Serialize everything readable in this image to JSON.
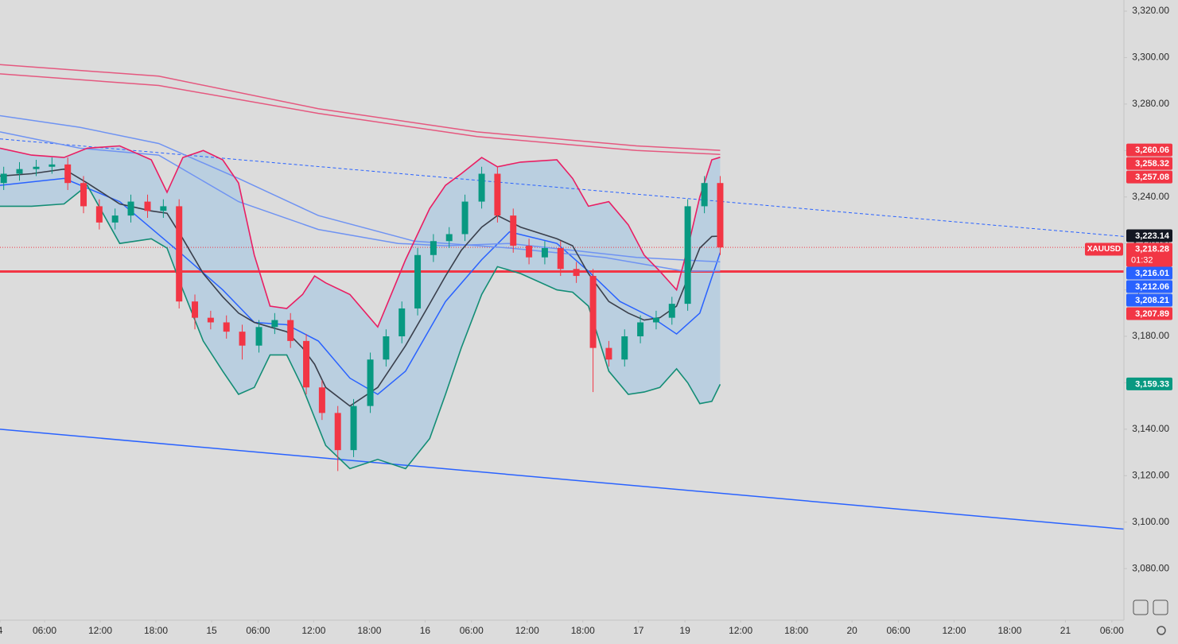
{
  "chart_data": {
    "type": "candlestick",
    "symbol": "XAUUSD",
    "countdown": "01:32",
    "last_price": {
      "value": 3218.28,
      "label": "3,218.28"
    },
    "last_color": "#f23645",
    "up_color": "#089981",
    "down_color": "#f23645",
    "xlim": [
      -22.8,
      98.3
    ],
    "ylim": [
      3057.8,
      3324.8
    ],
    "grid": false,
    "xticks": [
      {
        "value": -22.8,
        "label": "4"
      },
      {
        "value": -18,
        "label": "06:00"
      },
      {
        "value": -12,
        "label": "12:00"
      },
      {
        "value": -6,
        "label": "18:00"
      },
      {
        "value": 0,
        "label": "15"
      },
      {
        "value": 5,
        "label": "06:00"
      },
      {
        "value": 11,
        "label": "12:00"
      },
      {
        "value": 17,
        "label": "18:00"
      },
      {
        "value": 23,
        "label": "16"
      },
      {
        "value": 28,
        "label": "06:00"
      },
      {
        "value": 34,
        "label": "12:00"
      },
      {
        "value": 40,
        "label": "18:00"
      },
      {
        "value": 46,
        "label": "17"
      },
      {
        "value": 51,
        "label": "19"
      },
      {
        "value": 57,
        "label": "12:00"
      },
      {
        "value": 63,
        "label": "18:00"
      },
      {
        "value": 69,
        "label": "20"
      },
      {
        "value": 74,
        "label": "06:00"
      },
      {
        "value": 80,
        "label": "12:00"
      },
      {
        "value": 86,
        "label": "18:00"
      },
      {
        "value": 92,
        "label": "21"
      },
      {
        "value": 97,
        "label": "06:00"
      }
    ],
    "yticks": [
      {
        "value": 3320,
        "label": "3,320.00"
      },
      {
        "value": 3300,
        "label": "3,300.00"
      },
      {
        "value": 3280,
        "label": "3,280.00"
      },
      {
        "value": 3260,
        "label": "3,260.00"
      },
      {
        "value": 3240,
        "label": "3,240.00"
      },
      {
        "value": 3220,
        "label": "3,220.00"
      },
      {
        "value": 3200,
        "label": "3,200.00"
      },
      {
        "value": 3180,
        "label": "3,180.00"
      },
      {
        "value": 3160,
        "label": "3,160.00"
      },
      {
        "value": 3140,
        "label": "3,140.00"
      },
      {
        "value": 3120,
        "label": "3,120.00"
      },
      {
        "value": 3100,
        "label": "3,100.00"
      },
      {
        "value": 3080,
        "label": "3,080.00"
      }
    ],
    "candles": {
      "x": [
        -22.4,
        -20.7,
        -18.9,
        -17.2,
        -15.5,
        -13.8,
        -12.1,
        -10.4,
        -8.7,
        -6.9,
        -5.2,
        -3.5,
        -1.8,
        -0.1,
        1.6,
        3.3,
        5.1,
        6.8,
        8.5,
        10.2,
        11.9,
        13.6,
        15.3,
        17.1,
        18.8,
        20.5,
        22.2,
        23.9,
        25.6,
        27.3,
        29.1,
        30.8,
        32.5,
        34.2,
        35.9,
        37.6,
        39.3,
        41.1,
        42.8,
        44.5,
        46.2,
        47.9,
        49.6,
        51.3,
        53.1,
        54.8
      ],
      "open": [
        3246,
        3250,
        3252,
        3253,
        3254,
        3246,
        3236,
        3229,
        3232,
        3238,
        3234,
        3236,
        3195,
        3188,
        3186,
        3182,
        3176,
        3184,
        3187,
        3178,
        3158,
        3147,
        3131,
        3150,
        3170,
        3180,
        3192,
        3215,
        3221,
        3224,
        3238,
        3250,
        3232,
        3219,
        3214,
        3218,
        3209,
        3206,
        3175,
        3170,
        3180,
        3186,
        3188,
        3194,
        3236,
        3246
      ],
      "high": [
        3253,
        3255,
        3256,
        3257,
        3257,
        3249,
        3239,
        3235,
        3241,
        3241,
        3239,
        3239,
        3198,
        3191,
        3189,
        3185,
        3187,
        3190,
        3190,
        3181,
        3161,
        3150,
        3153,
        3173,
        3183,
        3195,
        3218,
        3224,
        3227,
        3241,
        3253,
        3253,
        3235,
        3222,
        3221,
        3221,
        3212,
        3209,
        3178,
        3183,
        3189,
        3191,
        3197,
        3239,
        3249,
        3249
      ],
      "low": [
        3243,
        3247,
        3249,
        3250,
        3243,
        3233,
        3226,
        3226,
        3229,
        3231,
        3231,
        3192,
        3183,
        3183,
        3179,
        3170,
        3173,
        3181,
        3175,
        3155,
        3144,
        3122,
        3128,
        3147,
        3167,
        3177,
        3189,
        3212,
        3218,
        3221,
        3235,
        3229,
        3216,
        3211,
        3211,
        3206,
        3203,
        3156,
        3167,
        3167,
        3177,
        3183,
        3185,
        3191,
        3233,
        3215
      ],
      "close": [
        3250,
        3252,
        3253,
        3254,
        3246,
        3236,
        3229,
        3232,
        3238,
        3234,
        3236,
        3195,
        3188,
        3186,
        3182,
        3176,
        3184,
        3187,
        3178,
        3158,
        3147,
        3131,
        3150,
        3170,
        3180,
        3192,
        3215,
        3221,
        3224,
        3238,
        3250,
        3232,
        3219,
        3214,
        3218,
        3209,
        3206,
        3175,
        3170,
        3180,
        3186,
        3188,
        3194,
        3236,
        3246,
        3218.28
      ]
    },
    "bands": {
      "fill": "rgba(33,150,243,0.18)",
      "x": [
        -22.8,
        -19.4,
        -15.9,
        -13.4,
        -9.9,
        -6.5,
        -4.8,
        -3.1,
        -0.9,
        1.2,
        2.9,
        4.6,
        6.3,
        8.1,
        9.8,
        11.1,
        12.3,
        14.9,
        17.9,
        20.9,
        23.5,
        25.2,
        26.9,
        29.1,
        30.8,
        33.3,
        37.2,
        38.9,
        40.6,
        42.8,
        44.9,
        46.6,
        48.3,
        50.1,
        51.3,
        52.6,
        53.9,
        54.8
      ],
      "upper": {
        "color": "#e91e63",
        "values": [
          3261,
          3258,
          3257,
          3261,
          3262,
          3256,
          3242,
          3257,
          3260,
          3256,
          3246,
          3215,
          3193,
          3192,
          3198,
          3206,
          3203,
          3198,
          3184,
          3213,
          3235,
          3245,
          3250,
          3257,
          3253,
          3255,
          3256,
          3248,
          3236,
          3238,
          3228,
          3215,
          3208,
          3200,
          3218,
          3240,
          3256,
          3257.08
        ]
      },
      "middle": {
        "color": "#3a3f4b",
        "values": [
          3249,
          3250,
          3252,
          3246,
          3237,
          3234,
          3233,
          3222,
          3207,
          3197,
          3190,
          3186,
          3184,
          3182,
          3175,
          3168,
          3158,
          3150,
          3158,
          3176,
          3194,
          3206,
          3217,
          3227,
          3232,
          3227,
          3222,
          3219,
          3207,
          3195,
          3190,
          3187,
          3188,
          3193,
          3205,
          3218,
          3223,
          3223.14
        ]
      },
      "lower": {
        "color": "#138d75",
        "values": [
          3236,
          3236,
          3237,
          3245,
          3220,
          3222,
          3218,
          3200,
          3178,
          3165,
          3155,
          3158,
          3172,
          3172,
          3158,
          3145,
          3133,
          3123,
          3127,
          3123,
          3136,
          3155,
          3175,
          3198,
          3210,
          3207,
          3200,
          3199,
          3193,
          3165,
          3155,
          3156,
          3158,
          3166,
          3160,
          3151,
          3152,
          3159.33
        ]
      }
    },
    "overlays": [
      {
        "color": "#2962ff",
        "width": 1.5,
        "x": [
          -22.8,
          -15.9,
          -9.9,
          -3.1,
          1.2,
          4.6,
          8.1,
          11.5,
          14.9,
          17.9,
          20.9,
          25.2,
          29.1,
          32.1,
          37.2,
          40.6,
          44,
          47.5,
          50.1,
          52.6,
          54.8
        ],
        "values": [
          3245,
          3248,
          3238,
          3215,
          3200,
          3186,
          3185,
          3178,
          3162,
          3155,
          3165,
          3195,
          3213,
          3225,
          3220,
          3208,
          3195,
          3188,
          3181,
          3190,
          3216.01
        ]
      },
      {
        "color": "#6f93f2",
        "width": 1.5,
        "x": [
          -22.8,
          -14.2,
          -5.7,
          2.9,
          11.5,
          20.1,
          25.2,
          32.1,
          38.9,
          45.8,
          54.8
        ],
        "values": [
          3268,
          3261,
          3258,
          3238,
          3226,
          3220,
          3219,
          3220,
          3217,
          3214,
          3212.06
        ]
      },
      {
        "color": "#6f93f2",
        "width": 1.5,
        "x": [
          -22.8,
          -14.2,
          -5.7,
          2.9,
          11.5,
          21.8,
          32.1,
          42.3,
          51,
          54.8
        ],
        "values": [
          3275,
          3270,
          3263,
          3248,
          3232,
          3221,
          3218,
          3214,
          3208,
          3208.21
        ]
      },
      {
        "color": "#e5587f",
        "width": 1.5,
        "x": [
          -22.8,
          -5.7,
          11.5,
          28.6,
          45.8,
          54.8
        ],
        "values": [
          3297,
          3292,
          3278,
          3268,
          3262,
          3260.06
        ]
      },
      {
        "color": "#e5587f",
        "width": 1.5,
        "x": [
          -22.8,
          -5.7,
          11.5,
          28.6,
          45.8,
          54.8
        ],
        "values": [
          3293,
          3288,
          3276,
          3266,
          3260,
          3258.32
        ]
      }
    ],
    "trendlines": [
      {
        "color": "#2962ff",
        "dash": true,
        "x": [
          -22.8,
          98.3
        ],
        "values": [
          3265,
          3223
        ]
      },
      {
        "color": "#2962ff",
        "dash": false,
        "x": [
          -22.8,
          98.3
        ],
        "values": [
          3140,
          3097
        ]
      }
    ],
    "hlines": [
      {
        "value": 3207.89,
        "color": "#f23645"
      }
    ],
    "price_labels": [
      {
        "value": 3260.06,
        "label": "3,260.06",
        "color": "#f23645"
      },
      {
        "value": 3258.32,
        "label": "3,258.32",
        "color": "#f23645"
      },
      {
        "value": 3257.08,
        "label": "3,257.08",
        "color": "#f23645"
      },
      {
        "value": 3223.14,
        "label": "3,223.14",
        "color": "#131722"
      },
      {
        "value": 3216.01,
        "label": "3,216.01",
        "color": "#2962ff"
      },
      {
        "value": 3212.06,
        "label": "3,212.06",
        "color": "#2962ff"
      },
      {
        "value": 3208.21,
        "label": "3,208.21",
        "color": "#2962ff"
      },
      {
        "value": 3207.89,
        "label": "3,207.89",
        "color": "#f23645"
      },
      {
        "value": 3159.33,
        "label": "3,159.33",
        "color": "#089981"
      }
    ]
  }
}
